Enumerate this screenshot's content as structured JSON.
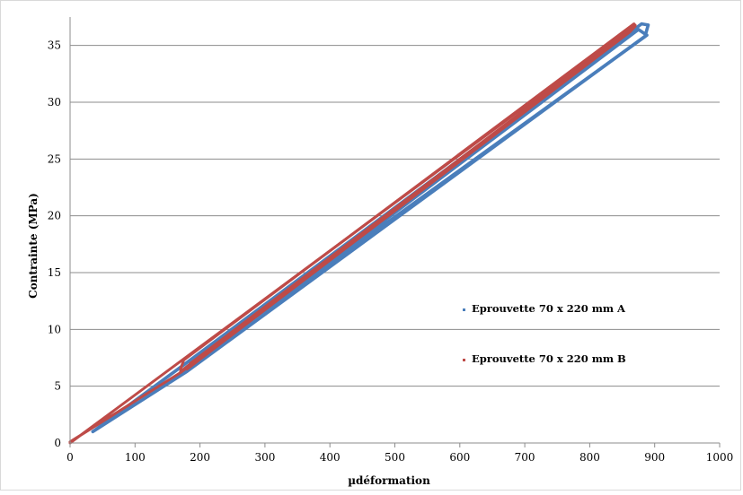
{
  "chart_data": {
    "type": "line",
    "title": "",
    "xlabel": "µdéformation",
    "ylabel": "Contrainte (MPa)",
    "xlim": [
      0,
      1000
    ],
    "ylim": [
      0,
      37.5
    ],
    "x_ticks": [
      0,
      100,
      200,
      300,
      400,
      500,
      600,
      700,
      800,
      900,
      1000
    ],
    "y_ticks": [
      0,
      5,
      10,
      15,
      20,
      25,
      30,
      35
    ],
    "grid": true,
    "legend_position": "right",
    "series": [
      {
        "name": "Eprouvette 70 x 220 mm A",
        "color": "#4a7ebb",
        "loops": [
          [
            [
              35,
              1
            ],
            [
              180,
              6.3
            ],
            [
              885,
              35.8
            ],
            [
              890,
              36.8
            ],
            [
              880,
              36.9
            ],
            [
              185,
              7.3
            ],
            [
              40,
              1.2
            ]
          ],
          [
            [
              175,
              6.3
            ],
            [
              875,
              36.4
            ],
            [
              888,
              35.9
            ],
            [
              180,
              6.7
            ]
          ]
        ]
      },
      {
        "name": "Eprouvette 70 x 220 mm B",
        "color": "#be4b48",
        "loops": [
          [
            [
              0,
              0
            ],
            [
              870,
              36.8
            ],
            [
              860,
              36.3
            ],
            [
              170,
              6.2
            ],
            [
              0,
              0.1
            ]
          ],
          [
            [
              170,
              6.3
            ],
            [
              865,
              36.4
            ],
            [
              868,
              36.9
            ],
            [
              175,
              7.3
            ],
            [
              170,
              6.5
            ]
          ],
          [
            [
              180,
              6.5
            ],
            [
              862,
              36.2
            ],
            [
              870,
              36.7
            ],
            [
              185,
              7.0
            ]
          ]
        ]
      }
    ]
  }
}
